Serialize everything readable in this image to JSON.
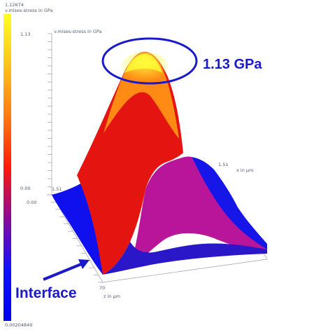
{
  "colorbar": {
    "max_label": "1.12674",
    "title": "v.mises-stress in GPa",
    "min_label": "0.00204849",
    "colors": [
      "#ffff20",
      "#ffc21a",
      "#ff7a10",
      "#ff1808",
      "#8a0a9a",
      "#1010ff",
      "#0000ee"
    ]
  },
  "axes": {
    "y_title": "v.mises-stress in GPa",
    "y_top_tick": "1.13",
    "y_bottom_tick": "0.00",
    "z_bottom_tick": "0.00",
    "x_end_tick": "1.51",
    "x_title": "x in µm",
    "z_start_tick": "1.51",
    "z_end_tick": "70",
    "z_title": "z in µm"
  },
  "annotations": {
    "peak_label": "1.13 GPa",
    "interface_label": "Interface",
    "color": "#1a1acb"
  },
  "chart_data": {
    "type": "surface",
    "title": "",
    "value_label": "v.mises-stress in GPa",
    "x_label": "x in µm",
    "z_label": "z in µm",
    "x_range": [
      0,
      1.51
    ],
    "z_range": [
      1.51,
      70
    ],
    "value_range": [
      0.00204849,
      1.12674
    ],
    "axis_ticks": {
      "value": [
        "0.00",
        "1.13"
      ],
      "x": [
        "1.51"
      ],
      "z": [
        "1.51",
        "70"
      ]
    },
    "peak_value": 1.13,
    "annotations": [
      "1.13 GPa",
      "Interface"
    ]
  }
}
